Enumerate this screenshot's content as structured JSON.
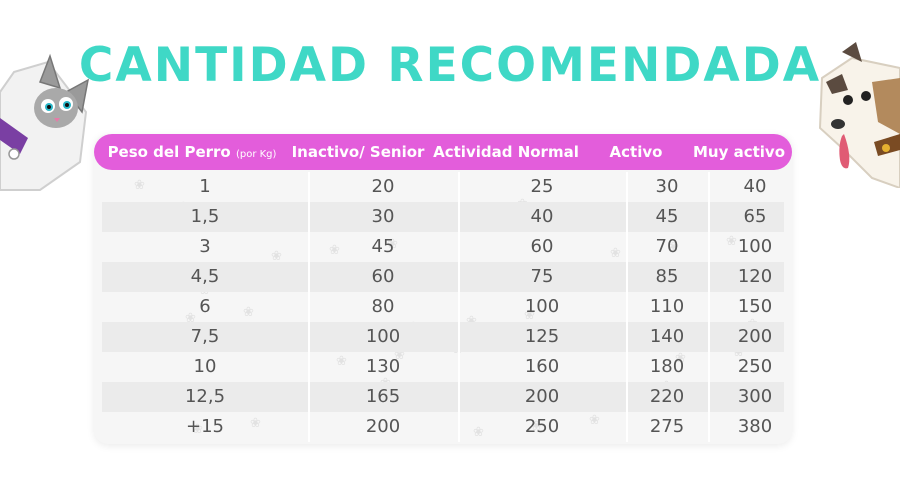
{
  "title": "CANTIDAD RECOMENDADA",
  "table": {
    "headers": [
      {
        "label": "Peso del Perro",
        "sub": "(por Kg)"
      },
      {
        "label": "Inactivo/ Senior",
        "sub": ""
      },
      {
        "label": "Actividad Normal",
        "sub": ""
      },
      {
        "label": "Activo",
        "sub": ""
      },
      {
        "label": "Muy activo",
        "sub": ""
      }
    ],
    "rows": [
      [
        "1",
        "20",
        "25",
        "30",
        "40"
      ],
      [
        "1,5",
        "30",
        "40",
        "45",
        "65"
      ],
      [
        "3",
        "45",
        "60",
        "70",
        "100"
      ],
      [
        "4,5",
        "60",
        "75",
        "85",
        "120"
      ],
      [
        "6",
        "80",
        "100",
        "110",
        "150"
      ],
      [
        "7,5",
        "100",
        "125",
        "140",
        "200"
      ],
      [
        "10",
        "130",
        "160",
        "180",
        "250"
      ],
      [
        "12,5",
        "165",
        "200",
        "220",
        "300"
      ],
      [
        "+15",
        "200",
        "250",
        "275",
        "380"
      ]
    ]
  },
  "colors": {
    "title": "#3fd8c6",
    "header": "#e35ddb",
    "stripe": "#ebebeb",
    "text": "#555555"
  },
  "icons": [
    "cat-mascot-icon",
    "dog-mascot-icon",
    "paw-print-icon"
  ]
}
